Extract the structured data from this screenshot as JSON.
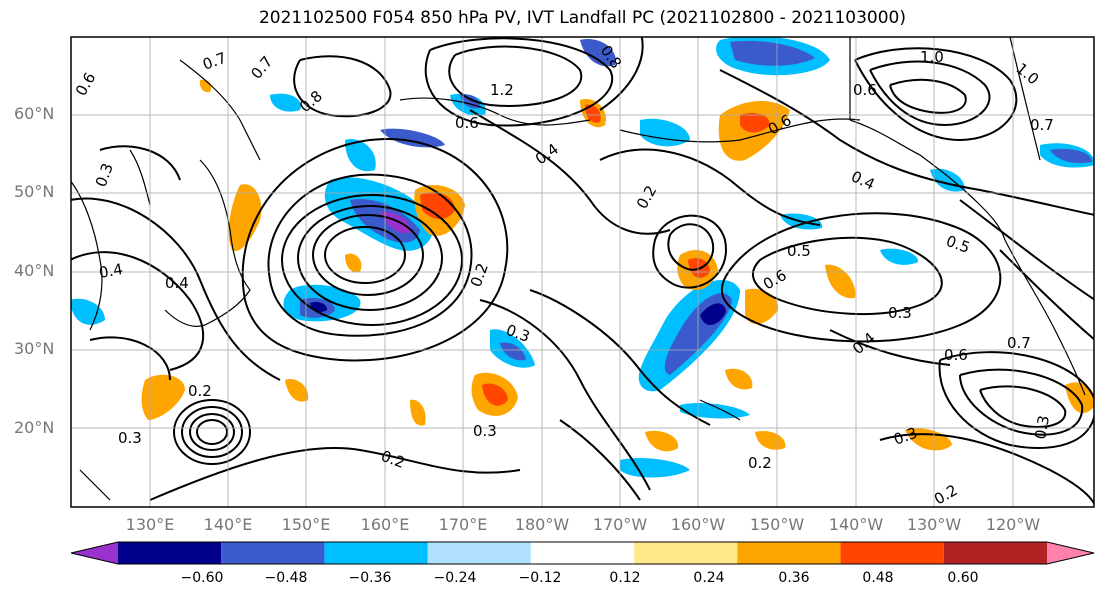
{
  "title": "2021102500 F054 850 hPa PV, IVT Landfall PC (2021102800 - 2021103000)",
  "map": {
    "lat_labels": [
      "60°N",
      "50°N",
      "40°N",
      "30°N",
      "20°N"
    ],
    "lon_labels": [
      "130°E",
      "140°E",
      "150°E",
      "160°E",
      "170°E",
      "180°W",
      "170°W",
      "160°W",
      "150°W",
      "140°W",
      "130°W",
      "120°W"
    ],
    "contour_labels": [
      "0.6",
      "0.7",
      "0.7",
      "0.8",
      "0.8",
      "1.2",
      "0.6",
      "1.0",
      "0.6",
      "1.0",
      "0.7",
      "0.4",
      "0.5",
      "0.6",
      "0.4",
      "0.2",
      "0.3",
      "0.3",
      "0.4",
      "0.4",
      "0.2",
      "0.5",
      "0.6",
      "0.3",
      "0.4",
      "0.6",
      "0.7",
      "0.3",
      "0.2",
      "0.3",
      "0.3",
      "0.2",
      "0.2",
      "0.3",
      "0.2"
    ],
    "colors": {
      "fill_neg": [
        "#9932cc",
        "#00008b",
        "#3b5bcc",
        "#00bfff",
        "#b0e2ff"
      ],
      "fill_pos": [
        "#ffe98a",
        "#ffa500",
        "#ff4500",
        "#b22222",
        "#ff82ab"
      ]
    }
  },
  "colorbar": {
    "tick_labels": [
      "−0.60",
      "−0.48",
      "−0.36",
      "−0.24",
      "−0.12",
      "0.12",
      "0.24",
      "0.36",
      "0.48",
      "0.60"
    ],
    "colors": [
      "#9932cc",
      "#00008b",
      "#3b5bcc",
      "#00bfff",
      "#b0e2ff",
      "#ffffff",
      "#ffe98a",
      "#ffa500",
      "#ff4500",
      "#b22222",
      "#ff82ab"
    ]
  }
}
